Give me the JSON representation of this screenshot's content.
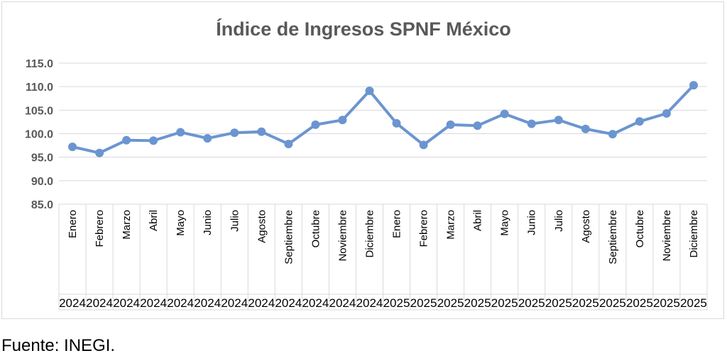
{
  "source_note": "Fuente: INEGI.",
  "colors": {
    "series": "#6b95d0",
    "grid": "#d9d9d9",
    "text": "#595959",
    "title": "#595959"
  },
  "chart_data": {
    "type": "line",
    "title": "Índice de Ingresos SPNF México",
    "xlabel": "",
    "ylabel": "",
    "ylim": [
      85,
      115
    ],
    "yticks": [
      "85.0",
      "90.0",
      "95.0",
      "100.0",
      "105.0",
      "110.0",
      "115.0"
    ],
    "grid": true,
    "legend": "none",
    "categories": [
      {
        "month": "Enero",
        "year": "2024"
      },
      {
        "month": "Febrero",
        "year": "2024"
      },
      {
        "month": "Marzo",
        "year": "2024"
      },
      {
        "month": "Abril",
        "year": "2024"
      },
      {
        "month": "Mayo",
        "year": "2024"
      },
      {
        "month": "Junio",
        "year": "2024"
      },
      {
        "month": "Julio",
        "year": "2024"
      },
      {
        "month": "Agosto",
        "year": "2024"
      },
      {
        "month": "Septiembre",
        "year": "2024"
      },
      {
        "month": "Octubre",
        "year": "2024"
      },
      {
        "month": "Noviembre",
        "year": "2024"
      },
      {
        "month": "Diciembre",
        "year": "2024"
      },
      {
        "month": "Enero",
        "year": "2025"
      },
      {
        "month": "Febrero",
        "year": "2025"
      },
      {
        "month": "Marzo",
        "year": "2025"
      },
      {
        "month": "Abril",
        "year": "2025"
      },
      {
        "month": "Mayo",
        "year": "2025"
      },
      {
        "month": "Junio",
        "year": "2025"
      },
      {
        "month": "Julio",
        "year": "2025"
      },
      {
        "month": "Agosto",
        "year": "2025"
      },
      {
        "month": "Septiembre",
        "year": "2025"
      },
      {
        "month": "Octubre",
        "year": "2025"
      },
      {
        "month": "Noviembre",
        "year": "2025"
      },
      {
        "month": "Diciembre",
        "year": "2025"
      }
    ],
    "series": [
      {
        "values": [
          97.2,
          95.9,
          98.6,
          98.5,
          100.3,
          99.0,
          100.2,
          100.4,
          97.8,
          101.9,
          102.9,
          109.1,
          102.2,
          97.6,
          101.9,
          101.7,
          104.2,
          102.1,
          102.9,
          101.0,
          99.9,
          102.6,
          104.3,
          110.3
        ]
      }
    ]
  }
}
